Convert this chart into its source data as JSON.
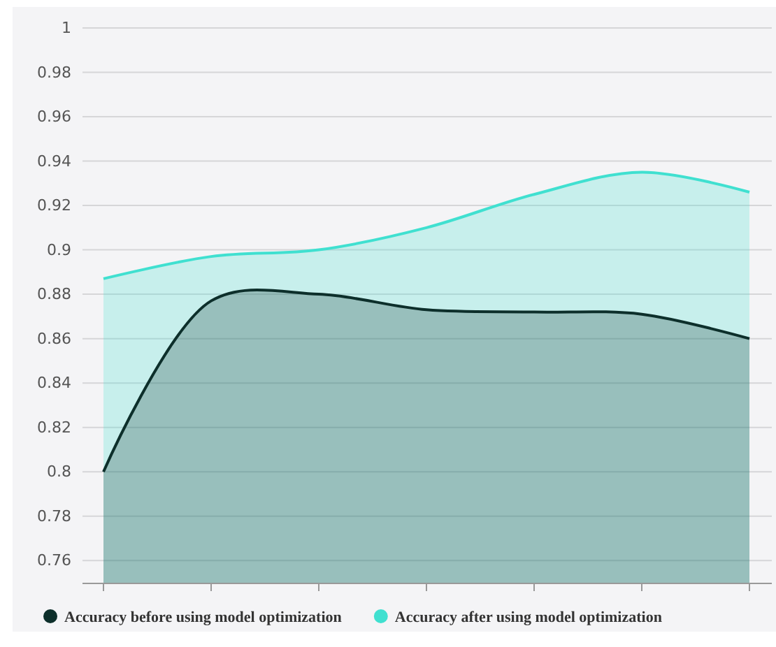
{
  "chart_data": {
    "type": "area",
    "categories": [
      null,
      null,
      null,
      null,
      null,
      null,
      null
    ],
    "series": [
      {
        "name": "Accuracy before using model optimization",
        "color": "#0d2f2b",
        "values": [
          0.8,
          0.877,
          0.88,
          0.873,
          0.872,
          0.871,
          0.86
        ]
      },
      {
        "name": "Accuracy after using model optimization",
        "color": "#40e0d0",
        "values": [
          0.887,
          0.897,
          0.9,
          0.91,
          0.925,
          0.935,
          0.926
        ]
      }
    ],
    "ylim": [
      0.75,
      1
    ],
    "yticks": [
      0.76,
      0.78,
      0.8,
      0.82,
      0.84,
      0.86,
      0.88,
      0.9,
      0.92,
      0.94,
      0.96,
      0.98,
      1
    ],
    "grid": "y",
    "legend": "bottom"
  }
}
